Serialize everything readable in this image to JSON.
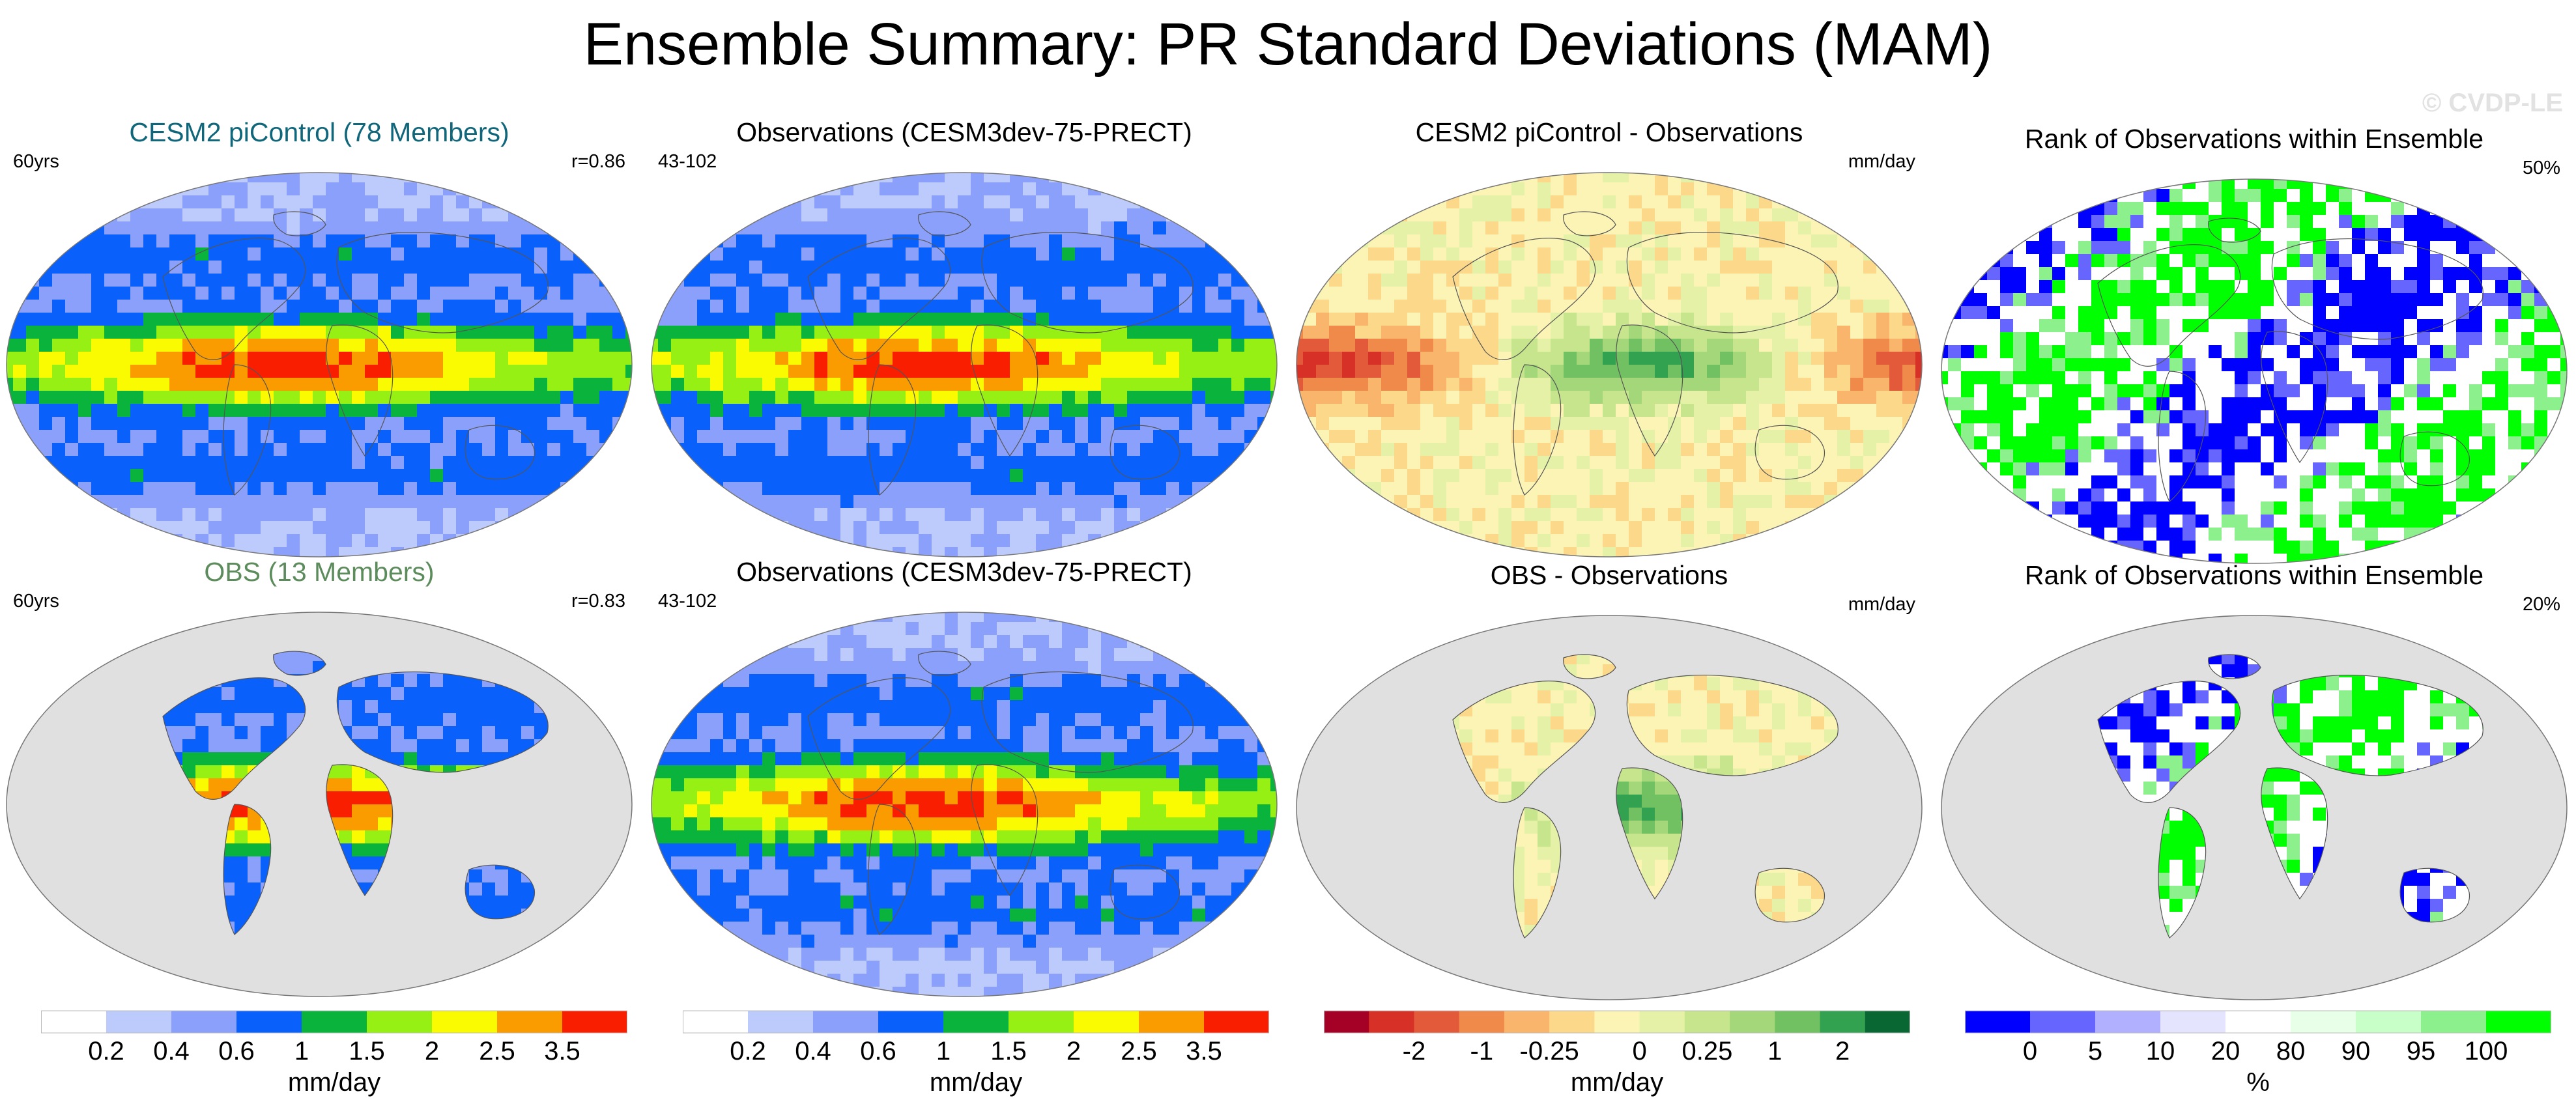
{
  "figure": {
    "title": "Ensemble Summary: PR Standard Deviations (MAM)",
    "watermark": "© CVDP-LE"
  },
  "colors": {
    "sd_scale": [
      "#ffffff",
      "#bccbfc",
      "#8aa0fa",
      "#0a60fa",
      "#0ab43c",
      "#96f014",
      "#fafa00",
      "#fa9b00",
      "#fa1e00"
    ],
    "diff_scale": [
      "#a50026",
      "#d73027",
      "#e35a3a",
      "#f08a4b",
      "#f9b56c",
      "#fcd98a",
      "#fbf4b5",
      "#e4f1a7",
      "#c6e58c",
      "#a3d77a",
      "#71c163",
      "#33a250",
      "#096734"
    ],
    "rank_scale": [
      "#0000ff",
      "#6666ff",
      "#b0b0ff",
      "#e4e4ff",
      "#ffffff",
      "#e8ffe8",
      "#c8ffc8",
      "#8cf08c",
      "#00ff00"
    ],
    "land_mask": "#e0e0e0",
    "coast": "#555555"
  },
  "panels": {
    "p1": {
      "title": "CESM2 piControl (78 Members)",
      "left_label": "60yrs",
      "right_label": "r=0.86",
      "title_color": "#10667a"
    },
    "p2": {
      "title": "Observations (CESM3dev-75-PRECT)",
      "left_label": "43-102",
      "right_label": "",
      "title_color": "#000000"
    },
    "p3": {
      "title": "CESM2 piControl - Observations",
      "left_label": "",
      "right_label": "mm/day",
      "title_color": "#000000"
    },
    "p4": {
      "title": "Rank of Observations within Ensemble",
      "left_label": "",
      "right_label": "50%",
      "title_color": "#000000"
    },
    "p5": {
      "title": "OBS (13 Members)",
      "left_label": "60yrs",
      "right_label": "r=0.83",
      "title_color": "#5c8c5c"
    },
    "p6": {
      "title": "Observations (CESM3dev-75-PRECT)",
      "left_label": "43-102",
      "right_label": "",
      "title_color": "#000000"
    },
    "p7": {
      "title": "OBS - Observations",
      "left_label": "",
      "right_label": "mm/day",
      "title_color": "#000000"
    },
    "p8": {
      "title": "Rank of Observations within Ensemble",
      "left_label": "",
      "right_label": "20%",
      "title_color": "#000000"
    }
  },
  "chart_data": [
    {
      "type": "heatmap",
      "title": "CESM2 piControl (78 Members)",
      "variable": "PR standard deviation",
      "season": "MAM",
      "units": "mm/day",
      "pattern_correlation": 0.86
    },
    {
      "type": "heatmap",
      "title": "Observations (CESM3dev-75-PRECT)",
      "variable": "PR standard deviation",
      "season": "MAM",
      "units": "mm/day"
    },
    {
      "type": "heatmap",
      "title": "CESM2 piControl - Observations",
      "variable": "PR standard deviation difference",
      "season": "MAM",
      "units": "mm/day"
    },
    {
      "type": "heatmap",
      "title": "Rank of Observations within Ensemble",
      "variable": "rank",
      "season": "MAM",
      "units": "%",
      "percent_area_summary": 50
    },
    {
      "type": "heatmap",
      "title": "OBS (13 Members)",
      "variable": "PR standard deviation",
      "season": "MAM",
      "units": "mm/day",
      "pattern_correlation": 0.83
    },
    {
      "type": "heatmap",
      "title": "Observations (CESM3dev-75-PRECT)",
      "variable": "PR standard deviation",
      "season": "MAM",
      "units": "mm/day"
    },
    {
      "type": "heatmap",
      "title": "OBS - Observations",
      "variable": "PR standard deviation difference",
      "season": "MAM",
      "units": "mm/day"
    },
    {
      "type": "heatmap",
      "title": "Rank of Observations within Ensemble",
      "variable": "rank",
      "season": "MAM",
      "units": "%",
      "percent_area_summary": 20
    }
  ],
  "colorbars": {
    "sd1": {
      "unit": "mm/day",
      "ticks": [
        "0.2",
        "0.4",
        "0.6",
        "1",
        "1.5",
        "2",
        "2.5",
        "3.5"
      ]
    },
    "sd2": {
      "unit": "mm/day",
      "ticks": [
        "0.2",
        "0.4",
        "0.6",
        "1",
        "1.5",
        "2",
        "2.5",
        "3.5"
      ]
    },
    "diff": {
      "unit": "mm/day",
      "ticks": [
        "-2",
        "-1",
        "-0.25",
        "0",
        "0.25",
        "1",
        "2"
      ]
    },
    "rank": {
      "unit": "%",
      "ticks": [
        "0",
        "5",
        "10",
        "20",
        "80",
        "90",
        "95",
        "100"
      ]
    }
  }
}
